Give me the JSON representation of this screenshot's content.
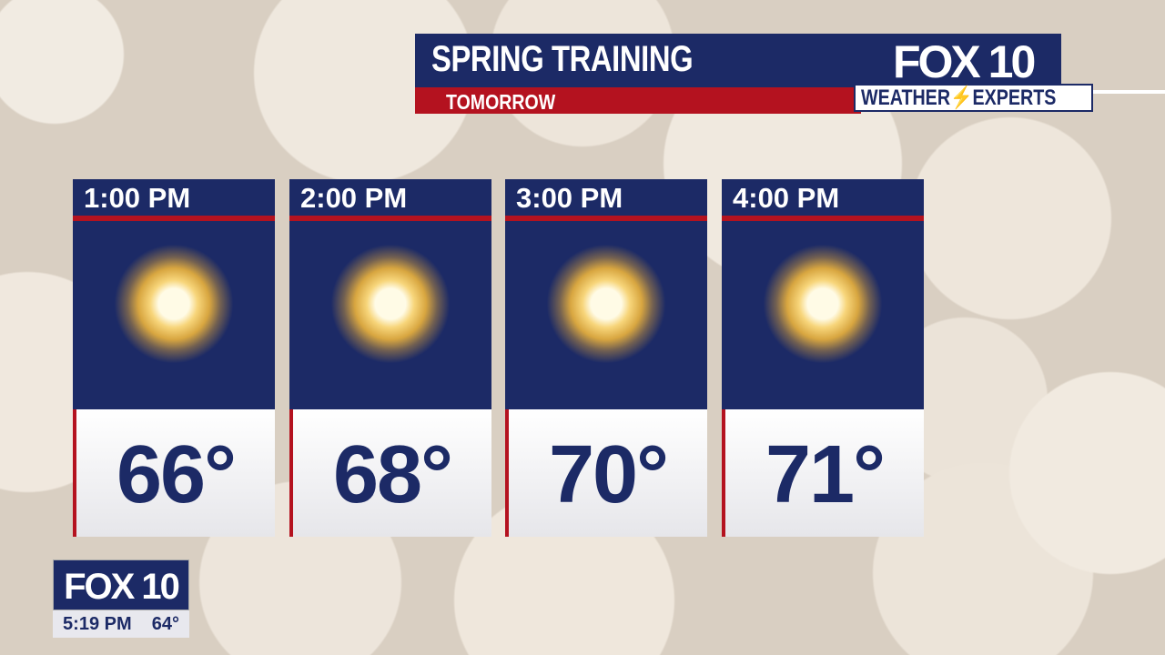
{
  "banner": {
    "title": "SPRING TRAINING",
    "subtitle": "TOMORROW",
    "logo": "FOX 10",
    "tagline": "WEATHER⚡EXPERTS"
  },
  "forecast": [
    {
      "time": "1:00 PM",
      "icon": "sunny-icon",
      "temp": "66°"
    },
    {
      "time": "2:00 PM",
      "icon": "sunny-icon",
      "temp": "68°"
    },
    {
      "time": "3:00 PM",
      "icon": "sunny-icon",
      "temp": "70°"
    },
    {
      "time": "4:00 PM",
      "icon": "sunny-icon",
      "temp": "71°"
    }
  ],
  "bug": {
    "logo": "FOX 10",
    "time": "5:19 PM",
    "temp": "64°"
  },
  "colors": {
    "navy": "#1c2a66",
    "red": "#b4121f"
  }
}
